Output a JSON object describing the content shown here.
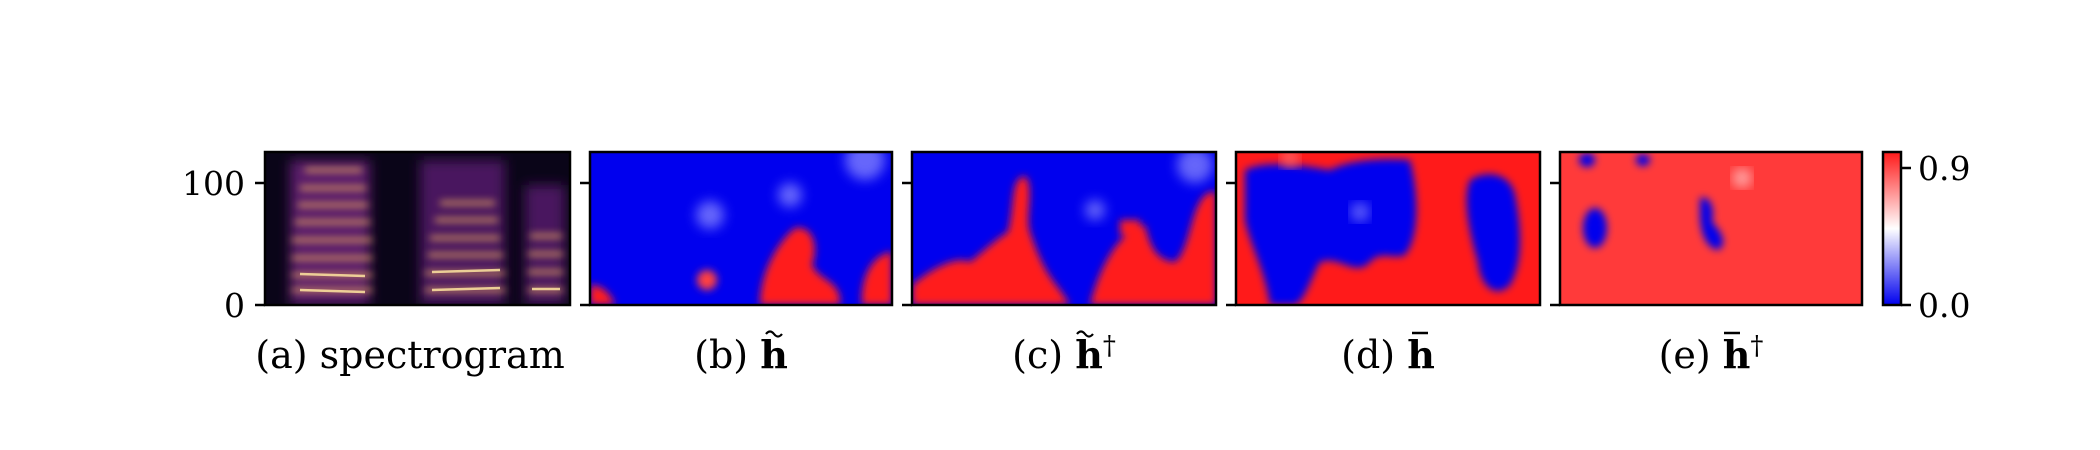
{
  "figure": {
    "colorbar": {
      "ticks": [
        "0.9",
        "0.0"
      ],
      "colors": [
        "#ff1a1a",
        "#ffffff",
        "#0000ee"
      ]
    },
    "yaxis": {
      "ticks": [
        "100",
        "0"
      ]
    },
    "panels": [
      {
        "caption": "(a) spectrogram",
        "kind": "spectrogram"
      },
      {
        "caption_prefix": "(b) ",
        "symbol": "h",
        "accent": "tilde",
        "dagger": ""
      },
      {
        "caption_prefix": "(c) ",
        "symbol": "h",
        "accent": "tilde",
        "dagger": "†"
      },
      {
        "caption_prefix": "(d) ",
        "symbol": "h",
        "accent": "bar",
        "dagger": ""
      },
      {
        "caption_prefix": "(e) ",
        "symbol": "h",
        "accent": "bar",
        "dagger": "†"
      }
    ]
  }
}
